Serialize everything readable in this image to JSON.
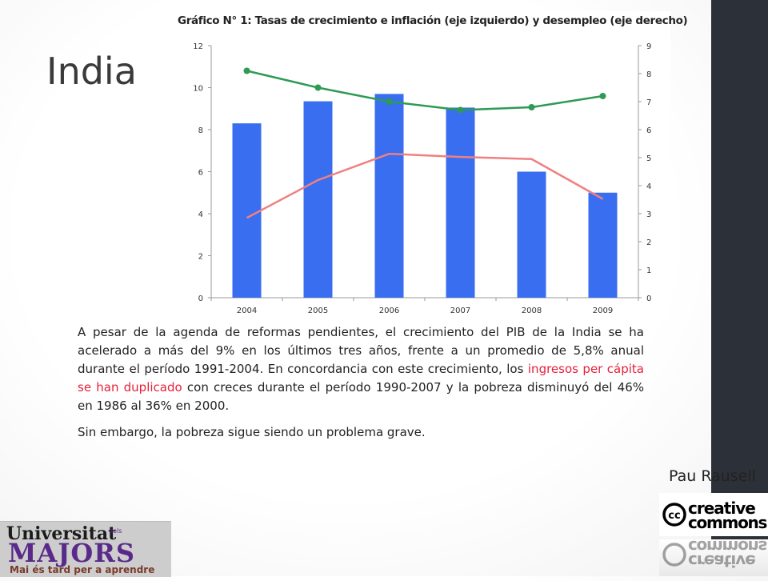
{
  "slide": {
    "title": "India",
    "paragraph1_part1": "A pesar de la agenda de reformas pendientes, el crecimiento del PIB de la India se ha acelerado a más del 9% en los últimos tres años, frente a un promedio de 5,8% anual durante el período 1991-2004. En concordancia con este crecimiento, los ",
    "paragraph1_highlight": "ingresos per cápita se han duplicado",
    "paragraph1_part2": " con creces durante el período 1990-2007 y la pobreza disminuyó del 46% en 1986 al 36% en 2000.",
    "paragraph2": "Sin embargo, la pobreza sigue siendo un problema grave.",
    "author": "Pau Rausell",
    "highlight_color": "#e6203a",
    "sidebar_color": "#2c3038"
  },
  "logos": {
    "cc_line1": "creative",
    "cc_line2": "commons",
    "cc_symbol": "cc",
    "uni_line1": "Universitat",
    "uni_small": "dels",
    "uni_line2": "MAJORS",
    "uni_line3": "Mai és tard per a aprendre"
  },
  "chart_data": {
    "type": "bar",
    "title": "Gráfico N° 1: Tasas de crecimiento e inflación (eje izquierdo) y desempleo (eje derecho)",
    "categories": [
      "2004",
      "2005",
      "2006",
      "2007",
      "2008",
      "2009"
    ],
    "y_left": {
      "ylim": [
        0,
        12
      ],
      "ticks": [
        "0",
        "2",
        "4",
        "6",
        "8",
        "10",
        "12"
      ]
    },
    "y_right": {
      "ylim": [
        0,
        9
      ],
      "ticks": [
        "0",
        "1",
        "2",
        "3",
        "4",
        "5",
        "6",
        "7",
        "8",
        "9"
      ]
    },
    "series": [
      {
        "type": "bar",
        "axis": "left",
        "color": "#3a6ef0",
        "values": [
          8.3,
          9.35,
          9.7,
          9.05,
          6.0,
          5.0
        ]
      },
      {
        "type": "line",
        "axis": "left",
        "color": "#f08080",
        "values": [
          3.8,
          5.6,
          6.85,
          6.7,
          6.6,
          4.7
        ]
      },
      {
        "type": "line",
        "axis": "right",
        "color": "#2e9a55",
        "markers": true,
        "values": [
          8.1,
          7.5,
          7.0,
          6.7,
          6.8,
          7.2
        ]
      }
    ],
    "grid": false
  }
}
